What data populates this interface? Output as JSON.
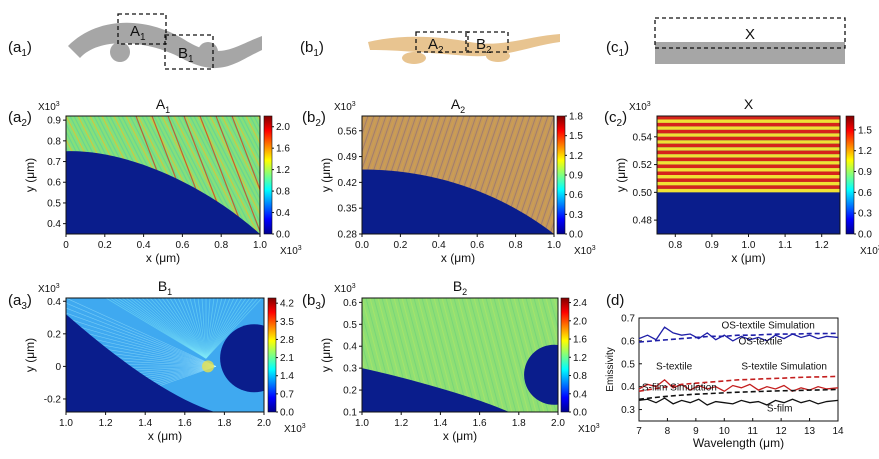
{
  "figure": {
    "schematics": [
      {
        "label": "a",
        "sub": "1",
        "boxes": [
          {
            "name": "A",
            "sub": "1"
          },
          {
            "name": "B",
            "sub": "1"
          }
        ],
        "color": "#a6a6a6"
      },
      {
        "label": "b",
        "sub": "1",
        "boxes": [
          {
            "name": "A",
            "sub": "2"
          },
          {
            "name": "B",
            "sub": "2"
          }
        ],
        "color": "#e8c490"
      },
      {
        "label": "c",
        "sub": "1",
        "boxes": [
          {
            "name": "X",
            "sub": ""
          }
        ],
        "color": "#a6a6a6"
      }
    ],
    "colors": {
      "substrate": "#0a1d8c",
      "axis": "#111111"
    }
  },
  "chart_data": [
    {
      "id": "a2",
      "type": "heatmap",
      "label": "a",
      "sub": "2",
      "title": "A",
      "title_sub": "1",
      "xlabel": "x (μm)",
      "ylabel": "y (μm)",
      "x_exp": "X10",
      "x_exp_sup": "3",
      "y_exp": "X10",
      "y_exp_sup": "3",
      "xlim": [
        0,
        1.0
      ],
      "ylim": [
        0.35,
        0.92
      ],
      "xticks": [
        0,
        0.2,
        0.4,
        0.6,
        0.8,
        1.0
      ],
      "xtick_labels": [
        "0",
        "0.2",
        "0.4",
        "0.6",
        "0.8",
        "1.0"
      ],
      "yticks": [
        0.4,
        0.5,
        0.6,
        0.7,
        0.8,
        0.9
      ],
      "ytick_labels": [
        "0.4",
        "0.5",
        "0.6",
        "0.7",
        "0.8",
        "0.9"
      ],
      "colorbar": {
        "min": 0,
        "max": 2.2,
        "ticks": [
          "0.0",
          "0.4",
          "0.8",
          "1.2",
          "1.6",
          "2.0"
        ],
        "tickvals": [
          0,
          0.4,
          0.8,
          1.2,
          1.6,
          2.0
        ]
      },
      "field": "green-red stripes",
      "boundary": "convex-down arc from (0, 0.75) to (1.0, 0.35)"
    },
    {
      "id": "b2",
      "type": "heatmap",
      "label": "b",
      "sub": "2",
      "title": "A",
      "title_sub": "2",
      "xlabel": "x (μm)",
      "ylabel": "y (μm)",
      "x_exp": "X10",
      "x_exp_sup": "3",
      "y_exp": "X10",
      "y_exp_sup": "3",
      "xlim": [
        0,
        1.0
      ],
      "ylim": [
        0.28,
        0.6
      ],
      "xticks": [
        0,
        0.2,
        0.4,
        0.6,
        0.8,
        1.0
      ],
      "xtick_labels": [
        "0.0",
        "0.2",
        "0.4",
        "0.6",
        "0.8",
        "1.0"
      ],
      "yticks": [
        0.28,
        0.35,
        0.42,
        0.49,
        0.56
      ],
      "ytick_labels": [
        "0.28",
        "0.35",
        "0.42",
        "0.49",
        "0.56"
      ],
      "colorbar": {
        "min": 0,
        "max": 1.8,
        "ticks": [
          "0.0",
          "0.3",
          "0.6",
          "0.9",
          "1.2",
          "1.5",
          "1.8"
        ],
        "tickvals": [
          0,
          0.3,
          0.6,
          0.9,
          1.2,
          1.5,
          1.8
        ]
      },
      "field": "orange-brown interference",
      "boundary": "convex-down arc from (0, 0.455) to (1.0, 0.28)"
    },
    {
      "id": "c2",
      "type": "heatmap",
      "label": "c",
      "sub": "2",
      "title": "X",
      "title_sub": "",
      "xlabel": "x (μm)",
      "ylabel": "y (μm)",
      "x_exp": "X10",
      "x_exp_sup": "3",
      "y_exp": "X10",
      "y_exp_sup": "3",
      "xlim": [
        0.75,
        1.25
      ],
      "ylim": [
        0.47,
        0.555
      ],
      "xticks": [
        0.8,
        0.9,
        1.0,
        1.1,
        1.2
      ],
      "xtick_labels": [
        "0.8",
        "0.9",
        "1.0",
        "1.1",
        "1.2"
      ],
      "yticks": [
        0.48,
        0.5,
        0.52,
        0.54
      ],
      "ytick_labels": [
        "0.48",
        "0.50",
        "0.52",
        "0.54"
      ],
      "colorbar": {
        "min": 0,
        "max": 1.7,
        "ticks": [
          "0.0",
          "0.3",
          "0.6",
          "0.9",
          "1.2",
          "1.5"
        ],
        "tickvals": [
          0,
          0.3,
          0.6,
          0.9,
          1.2,
          1.5
        ]
      },
      "field": "horizontal red/yellow stripes",
      "boundary": "flat at y = 0.50"
    },
    {
      "id": "a3",
      "type": "heatmap",
      "label": "a",
      "sub": "3",
      "title": "B",
      "title_sub": "1",
      "xlabel": "x (μm)",
      "ylabel": "y (μm)",
      "x_exp": "X10",
      "x_exp_sup": "3",
      "y_exp": "X10",
      "y_exp_sup": "3",
      "xlim": [
        1.0,
        2.0
      ],
      "ylim": [
        -0.28,
        0.42
      ],
      "xticks": [
        1.0,
        1.2,
        1.4,
        1.6,
        1.8,
        2.0
      ],
      "xtick_labels": [
        "1.0",
        "1.2",
        "1.4",
        "1.6",
        "1.8",
        "2.0"
      ],
      "yticks": [
        -0.2,
        0,
        0.2,
        0.4
      ],
      "ytick_labels": [
        "-0.2",
        "0",
        "0.2",
        "0.4"
      ],
      "colorbar": {
        "min": 0,
        "max": 4.4,
        "ticks": [
          "0.0",
          "0.7",
          "1.4",
          "2.1",
          "2.8",
          "3.5",
          "4.2"
        ],
        "tickvals": [
          0,
          0.7,
          1.4,
          2.1,
          2.8,
          3.5,
          4.2
        ]
      },
      "field": "cyan scattered rays",
      "boundary": "concave arc plus circle at right"
    },
    {
      "id": "b3",
      "type": "heatmap",
      "label": "b",
      "sub": "3",
      "title": "B",
      "title_sub": "2",
      "xlabel": "x (μm)",
      "ylabel": "y (μm)",
      "x_exp": "X10",
      "x_exp_sup": "3",
      "y_exp": "X10",
      "y_exp_sup": "3",
      "xlim": [
        1.0,
        2.0
      ],
      "ylim": [
        0.1,
        0.62
      ],
      "xticks": [
        1.0,
        1.2,
        1.4,
        1.6,
        1.8,
        2.0
      ],
      "xtick_labels": [
        "1.0",
        "1.2",
        "1.4",
        "1.6",
        "1.8",
        "2.0"
      ],
      "yticks": [
        0.1,
        0.2,
        0.3,
        0.4,
        0.5,
        0.6
      ],
      "ytick_labels": [
        "0.1",
        "0.2",
        "0.3",
        "0.4",
        "0.5",
        "0.6"
      ],
      "colorbar": {
        "min": 0,
        "max": 2.5,
        "ticks": [
          "0.0",
          "0.4",
          "0.8",
          "1.2",
          "1.6",
          "2.0",
          "2.4"
        ],
        "tickvals": [
          0,
          0.4,
          0.8,
          1.2,
          1.6,
          2.0,
          2.4
        ]
      },
      "field": "green interference",
      "boundary": "concave arc plus circle at right"
    },
    {
      "id": "d",
      "type": "line",
      "label": "d",
      "sub": "",
      "xlabel": "Wavelength (μm)",
      "ylabel": "Emissivity",
      "xlim": [
        7,
        14
      ],
      "ylim": [
        0.25,
        0.7
      ],
      "xticks": [
        7,
        8,
        9,
        10,
        11,
        12,
        13,
        14
      ],
      "xtick_labels": [
        "7",
        "8",
        "9",
        "10",
        "11",
        "12",
        "13",
        "14"
      ],
      "yticks": [
        0.3,
        0.4,
        0.5,
        0.6,
        0.7
      ],
      "ytick_labels": [
        "0.3",
        "0.4",
        "0.5",
        "0.6",
        "0.7"
      ],
      "series": [
        {
          "name": "OS-textile Simulation",
          "color": "#1f1fa8",
          "style": "dashed",
          "x": [
            7,
            7.5,
            8,
            8.5,
            9,
            9.5,
            10,
            10.5,
            11,
            11.5,
            12,
            12.5,
            13,
            13.5,
            14
          ],
          "y": [
            0.595,
            0.6,
            0.605,
            0.61,
            0.615,
            0.62,
            0.62,
            0.625,
            0.625,
            0.628,
            0.63,
            0.63,
            0.632,
            0.632,
            0.633
          ]
        },
        {
          "name": "OS-textile",
          "color": "#1f1fa8",
          "style": "solid",
          "x": [
            7,
            7.3,
            7.6,
            7.9,
            8.2,
            8.5,
            8.8,
            9.1,
            9.4,
            9.7,
            10,
            10.3,
            10.6,
            10.9,
            11.2,
            11.5,
            11.8,
            12.1,
            12.4,
            12.7,
            13,
            13.3,
            13.6,
            14
          ],
          "y": [
            0.61,
            0.625,
            0.605,
            0.66,
            0.635,
            0.625,
            0.63,
            0.61,
            0.635,
            0.605,
            0.625,
            0.6,
            0.62,
            0.605,
            0.615,
            0.6,
            0.625,
            0.61,
            0.63,
            0.615,
            0.625,
            0.61,
            0.62,
            0.615
          ]
        },
        {
          "name": "S-textile Simulation",
          "color": "#c41e1e",
          "style": "dashed",
          "x": [
            7,
            7.5,
            8,
            8.5,
            9,
            9.5,
            10,
            10.5,
            11,
            11.5,
            12,
            12.5,
            13,
            13.5,
            14
          ],
          "y": [
            0.38,
            0.39,
            0.4,
            0.41,
            0.415,
            0.42,
            0.425,
            0.43,
            0.432,
            0.435,
            0.437,
            0.44,
            0.442,
            0.443,
            0.445
          ]
        },
        {
          "name": "S-textile",
          "color": "#c41e1e",
          "style": "solid",
          "x": [
            7,
            7.3,
            7.6,
            7.9,
            8.2,
            8.5,
            8.8,
            9.1,
            9.4,
            9.7,
            10,
            10.3,
            10.6,
            10.9,
            11.2,
            11.5,
            11.8,
            12.1,
            12.4,
            12.7,
            13,
            13.3,
            13.6,
            14
          ],
          "y": [
            0.39,
            0.41,
            0.4,
            0.43,
            0.395,
            0.41,
            0.385,
            0.405,
            0.39,
            0.4,
            0.38,
            0.405,
            0.395,
            0.41,
            0.385,
            0.4,
            0.39,
            0.405,
            0.38,
            0.395,
            0.385,
            0.4,
            0.39,
            0.395
          ]
        },
        {
          "name": "S-film Simulation",
          "color": "#111111",
          "style": "dashed",
          "x": [
            7,
            7.5,
            8,
            8.5,
            9,
            9.5,
            10,
            10.5,
            11,
            11.5,
            12,
            12.5,
            13,
            13.5,
            14
          ],
          "y": [
            0.345,
            0.352,
            0.358,
            0.363,
            0.367,
            0.37,
            0.373,
            0.376,
            0.378,
            0.38,
            0.382,
            0.383,
            0.385,
            0.386,
            0.388
          ]
        },
        {
          "name": "S-film",
          "color": "#111111",
          "style": "solid",
          "x": [
            7,
            7.3,
            7.6,
            7.9,
            8.2,
            8.5,
            8.8,
            9.1,
            9.4,
            9.7,
            10,
            10.3,
            10.6,
            10.9,
            11.2,
            11.5,
            11.8,
            12.1,
            12.4,
            12.7,
            13,
            13.3,
            13.6,
            14
          ],
          "y": [
            0.34,
            0.345,
            0.33,
            0.35,
            0.325,
            0.34,
            0.33,
            0.345,
            0.32,
            0.335,
            0.33,
            0.325,
            0.34,
            0.33,
            0.335,
            0.32,
            0.34,
            0.33,
            0.345,
            0.33,
            0.34,
            0.325,
            0.335,
            0.34
          ]
        }
      ]
    }
  ]
}
